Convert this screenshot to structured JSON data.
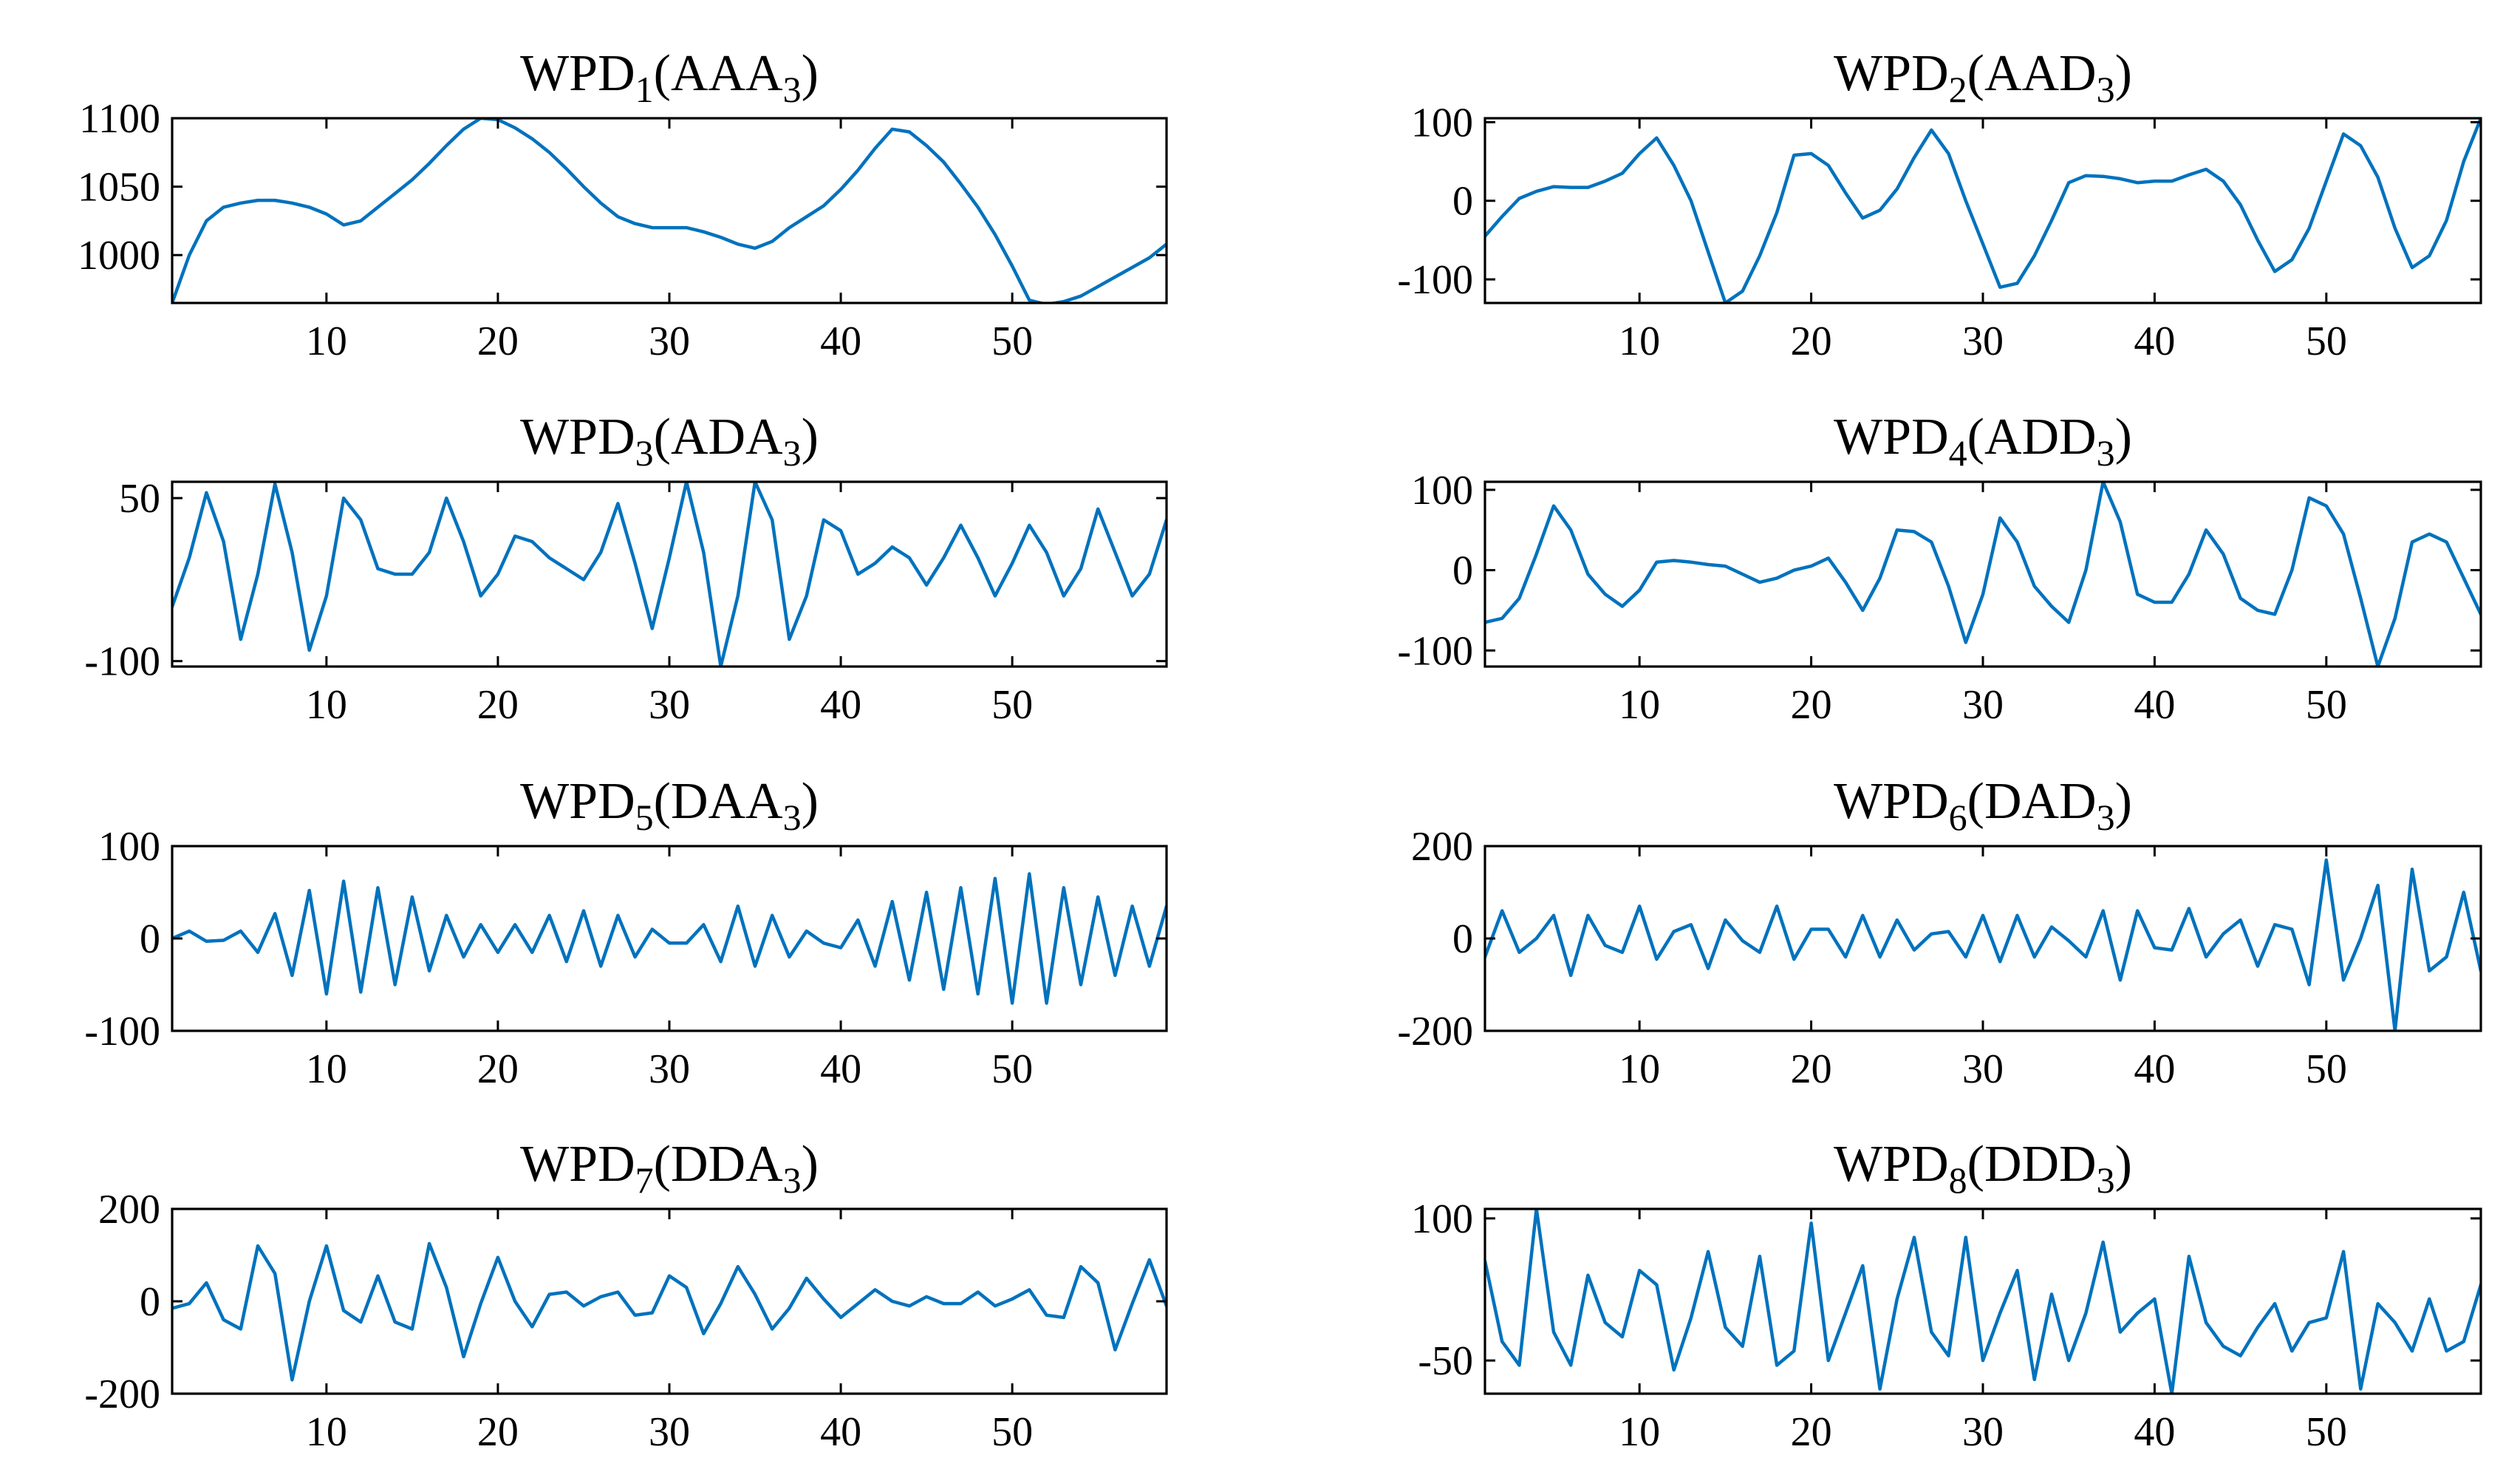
{
  "figure": {
    "background": "#ffffff",
    "line_color": "#0072BD"
  },
  "chart_data": [
    {
      "type": "line",
      "title": "WPD",
      "title_sub": "1",
      "title_suffix": "(AAA",
      "title_suffix_sub": "3",
      "title_close": ")",
      "xlim": [
        1,
        59
      ],
      "ylim": [
        965,
        1100
      ],
      "xticks": [
        10,
        20,
        30,
        40,
        50
      ],
      "xtick_labels": [
        "10",
        "20",
        "30",
        "40",
        "50"
      ],
      "yticks": [
        1000,
        1050,
        1100
      ],
      "ytick_labels": [
        "1000",
        "1050",
        "1100"
      ],
      "y": [
        965,
        1000,
        1025,
        1035,
        1038,
        1040,
        1040,
        1038,
        1035,
        1030,
        1022,
        1025,
        1035,
        1045,
        1055,
        1067,
        1080,
        1092,
        1100,
        1099,
        1093,
        1085,
        1075,
        1063,
        1050,
        1038,
        1028,
        1023,
        1020,
        1020,
        1020,
        1017,
        1013,
        1008,
        1005,
        1010,
        1020,
        1028,
        1036,
        1048,
        1062,
        1078,
        1092,
        1090,
        1080,
        1068,
        1052,
        1035,
        1015,
        992,
        967,
        964,
        966,
        970,
        977,
        984,
        991,
        998,
        1008
      ]
    },
    {
      "type": "line",
      "title": "WPD",
      "title_sub": "2",
      "title_suffix": "(AAD",
      "title_suffix_sub": "3",
      "title_close": ")",
      "xlim": [
        1,
        59
      ],
      "ylim": [
        -130,
        105
      ],
      "xticks": [
        10,
        20,
        30,
        40,
        50
      ],
      "xtick_labels": [
        "10",
        "20",
        "30",
        "40",
        "50"
      ],
      "yticks": [
        -100,
        0,
        100
      ],
      "ytick_labels": [
        "-100",
        "0",
        "100"
      ],
      "y": [
        -45,
        -20,
        3,
        12,
        18,
        17,
        17,
        25,
        35,
        60,
        80,
        45,
        0,
        -65,
        -130,
        -115,
        -70,
        -15,
        58,
        60,
        45,
        10,
        -22,
        -12,
        15,
        55,
        90,
        60,
        0,
        -55,
        -110,
        -105,
        -70,
        -25,
        23,
        32,
        31,
        28,
        23,
        25,
        25,
        33,
        40,
        25,
        -5,
        -50,
        -90,
        -75,
        -35,
        25,
        85,
        70,
        30,
        -35,
        -85,
        -70,
        -25,
        50,
        105
      ]
    },
    {
      "type": "line",
      "title": "WPD",
      "title_sub": "3",
      "title_suffix": "(ADA",
      "title_suffix_sub": "3",
      "title_close": ")",
      "xlim": [
        1,
        59
      ],
      "ylim": [
        -105,
        65
      ],
      "xticks": [
        10,
        20,
        30,
        40,
        50
      ],
      "xtick_labels": [
        "10",
        "20",
        "30",
        "40",
        "50"
      ],
      "yticks": [
        -100,
        50
      ],
      "ytick_labels": [
        "-100",
        "50"
      ],
      "y": [
        -50,
        -5,
        55,
        10,
        -80,
        -20,
        63,
        0,
        -90,
        -40,
        50,
        30,
        -15,
        -20,
        -20,
        0,
        50,
        10,
        -40,
        -20,
        15,
        10,
        -5,
        -15,
        -25,
        0,
        45,
        -10,
        -70,
        -5,
        65,
        0,
        -105,
        -40,
        65,
        30,
        -80,
        -40,
        30,
        20,
        -20,
        -10,
        5,
        -5,
        -30,
        -5,
        25,
        -5,
        -40,
        -10,
        25,
        0,
        -40,
        -15,
        40,
        0,
        -40,
        -20,
        30
      ]
    },
    {
      "type": "line",
      "title": "WPD",
      "title_sub": "4",
      "title_suffix": "(ADD",
      "title_suffix_sub": "3",
      "title_close": ")",
      "xlim": [
        1,
        59
      ],
      "ylim": [
        -120,
        110
      ],
      "xticks": [
        10,
        20,
        30,
        40,
        50
      ],
      "xtick_labels": [
        "10",
        "20",
        "30",
        "40",
        "50"
      ],
      "yticks": [
        -100,
        0,
        100
      ],
      "ytick_labels": [
        "-100",
        "0",
        "100"
      ],
      "y": [
        -65,
        -60,
        -35,
        20,
        80,
        50,
        -5,
        -30,
        -45,
        -25,
        10,
        12,
        10,
        7,
        5,
        -5,
        -15,
        -10,
        0,
        5,
        15,
        -15,
        -50,
        -10,
        50,
        48,
        35,
        -20,
        -90,
        -30,
        65,
        35,
        -20,
        -45,
        -65,
        0,
        110,
        60,
        -30,
        -40,
        -40,
        -5,
        50,
        20,
        -35,
        -50,
        -55,
        0,
        90,
        80,
        45,
        -35,
        -120,
        -60,
        35,
        45,
        35,
        -10,
        -55
      ]
    },
    {
      "type": "line",
      "title": "WPD",
      "title_sub": "5",
      "title_suffix": "(DAA",
      "title_suffix_sub": "3",
      "title_close": ")",
      "xlim": [
        1,
        59
      ],
      "ylim": [
        -100,
        100
      ],
      "xticks": [
        10,
        20,
        30,
        40,
        50
      ],
      "xtick_labels": [
        "10",
        "20",
        "30",
        "40",
        "50"
      ],
      "yticks": [
        -100,
        0,
        100
      ],
      "ytick_labels": [
        "-100",
        "0",
        "100"
      ],
      "y": [
        0,
        8,
        -3,
        -2,
        8,
        -15,
        27,
        -40,
        52,
        -60,
        62,
        -58,
        55,
        -50,
        45,
        -35,
        25,
        -20,
        15,
        -15,
        15,
        -15,
        25,
        -25,
        30,
        -30,
        25,
        -20,
        10,
        -5,
        -5,
        15,
        -25,
        35,
        -30,
        25,
        -20,
        8,
        -5,
        -10,
        20,
        -30,
        40,
        -45,
        50,
        -55,
        55,
        -60,
        65,
        -70,
        70,
        -70,
        55,
        -50,
        45,
        -40,
        35,
        -30,
        35
      ]
    },
    {
      "type": "line",
      "title": "WPD",
      "title_sub": "6",
      "title_suffix": "(DAD",
      "title_suffix_sub": "3",
      "title_close": ")",
      "xlim": [
        1,
        59
      ],
      "ylim": [
        -200,
        200
      ],
      "xticks": [
        10,
        20,
        30,
        40,
        50
      ],
      "xtick_labels": [
        "10",
        "20",
        "30",
        "40",
        "50"
      ],
      "yticks": [
        -200,
        0,
        200
      ],
      "ytick_labels": [
        "-200",
        "0",
        "200"
      ],
      "y": [
        -40,
        60,
        -30,
        0,
        50,
        -80,
        50,
        -15,
        -30,
        70,
        -45,
        15,
        30,
        -65,
        40,
        -5,
        -30,
        70,
        -45,
        20,
        20,
        -40,
        50,
        -40,
        40,
        -25,
        10,
        15,
        -40,
        50,
        -50,
        50,
        -40,
        25,
        -5,
        -40,
        60,
        -90,
        60,
        -20,
        -25,
        65,
        -40,
        10,
        40,
        -60,
        30,
        20,
        -100,
        170,
        -90,
        0,
        115,
        -200,
        150,
        -70,
        -40,
        100,
        -70
      ]
    },
    {
      "type": "line",
      "title": "WPD",
      "title_sub": "7",
      "title_suffix": "(DDA",
      "title_suffix_sub": "3",
      "title_close": ")",
      "xlim": [
        1,
        59
      ],
      "ylim": [
        -200,
        200
      ],
      "xticks": [
        10,
        20,
        30,
        40,
        50
      ],
      "xtick_labels": [
        "10",
        "20",
        "30",
        "40",
        "50"
      ],
      "yticks": [
        -200,
        0,
        200
      ],
      "ytick_labels": [
        "-200",
        "0",
        "200"
      ],
      "y": [
        -15,
        -5,
        40,
        -40,
        -60,
        120,
        60,
        -170,
        0,
        120,
        -20,
        -45,
        55,
        -45,
        -60,
        125,
        30,
        -120,
        -5,
        95,
        0,
        -55,
        15,
        20,
        -10,
        10,
        20,
        -30,
        -25,
        55,
        30,
        -70,
        -5,
        75,
        15,
        -60,
        -15,
        50,
        5,
        -35,
        -5,
        25,
        0,
        -10,
        10,
        -5,
        -5,
        20,
        -10,
        5,
        25,
        -30,
        -35,
        75,
        40,
        -105,
        -5,
        90,
        -10
      ]
    },
    {
      "type": "line",
      "title": "WPD",
      "title_sub": "8",
      "title_suffix": "(DDD",
      "title_suffix_sub": "3",
      "title_close": ")",
      "xlim": [
        1,
        59
      ],
      "ylim": [
        -85,
        110
      ],
      "xticks": [
        10,
        20,
        30,
        40,
        50
      ],
      "xtick_labels": [
        "10",
        "20",
        "30",
        "40",
        "50"
      ],
      "yticks": [
        -50,
        100
      ],
      "ytick_labels": [
        "-50",
        "100"
      ],
      "y": [
        55,
        -30,
        -55,
        110,
        -20,
        -55,
        40,
        -10,
        -25,
        45,
        30,
        -60,
        -5,
        65,
        -15,
        -35,
        60,
        -55,
        -40,
        95,
        -50,
        0,
        50,
        -80,
        15,
        80,
        -20,
        -45,
        80,
        -50,
        0,
        45,
        -70,
        20,
        -50,
        0,
        75,
        -20,
        0,
        15,
        -85,
        60,
        -10,
        -35,
        -45,
        -15,
        10,
        -40,
        -10,
        -5,
        65,
        -80,
        10,
        -10,
        -40,
        15,
        -40,
        -30,
        30
      ]
    }
  ]
}
